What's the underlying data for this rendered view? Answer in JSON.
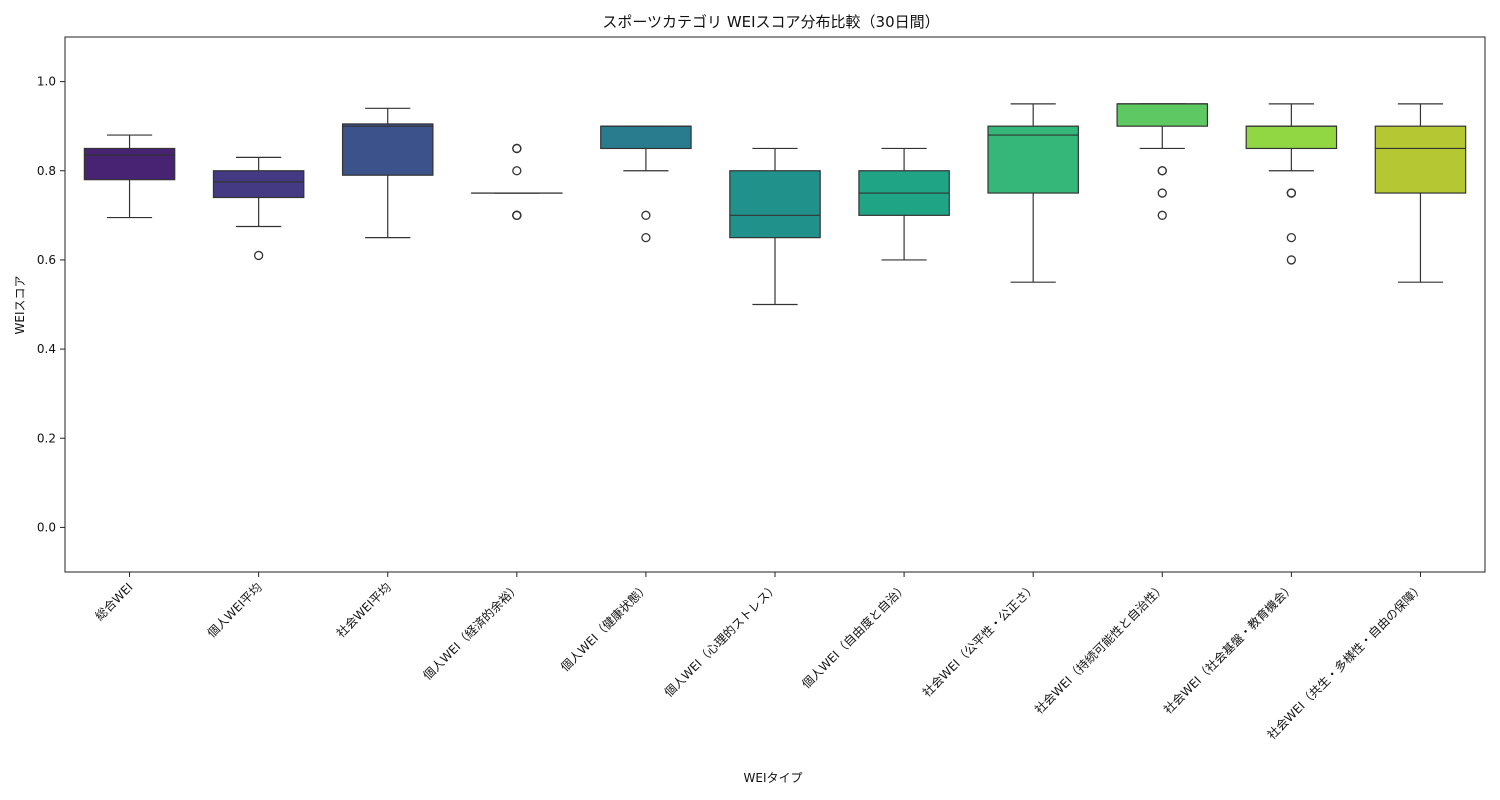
{
  "chart_data": {
    "type": "box",
    "title": "スポーツカテゴリ WEIスコア分布比較（30日間）",
    "xlabel": "WEIタイプ",
    "ylabel": "WEIスコア",
    "ylim": [
      -0.1,
      1.1
    ],
    "yticks": [
      "0.0",
      "0.2",
      "0.4",
      "0.6",
      "0.8",
      "1.0"
    ],
    "grid": false,
    "legend": "none",
    "categories": [
      "総合WEI",
      "個人WEI平均",
      "社会WEI平均",
      "個人WEI（経済的余裕）",
      "個人WEI（健康状態）",
      "個人WEI（心理的ストレス）",
      "個人WEI（自由度と自治）",
      "社会WEI（公平性・公正さ）",
      "社会WEI（持続可能性と自治性）",
      "社会WEI（社会基盤・教育機会）",
      "社会WEI（共生・多様性・自由の保障）"
    ],
    "boxes": [
      {
        "color": "#482374",
        "whisker_low": 0.695,
        "q1": 0.78,
        "median": 0.835,
        "q3": 0.85,
        "whisker_high": 0.88,
        "outliers": []
      },
      {
        "color": "#443983",
        "whisker_low": 0.675,
        "q1": 0.74,
        "median": 0.775,
        "q3": 0.8,
        "whisker_high": 0.83,
        "outliers": [
          0.61
        ]
      },
      {
        "color": "#3b528b",
        "whisker_low": 0.65,
        "q1": 0.79,
        "median": 0.9,
        "q3": 0.905,
        "whisker_high": 0.94,
        "outliers": []
      },
      {
        "color": "#31688e",
        "whisker_low": 0.75,
        "q1": 0.75,
        "median": 0.75,
        "q3": 0.75,
        "whisker_high": 0.75,
        "outliers": [
          0.85,
          0.85,
          0.8,
          0.7,
          0.7,
          0.7
        ]
      },
      {
        "color": "#287c8e",
        "whisker_low": 0.8,
        "q1": 0.85,
        "median": 0.9,
        "q3": 0.9,
        "whisker_high": 0.9,
        "outliers": [
          0.7,
          0.65
        ]
      },
      {
        "color": "#21918c",
        "whisker_low": 0.5,
        "q1": 0.65,
        "median": 0.7,
        "q3": 0.8,
        "whisker_high": 0.85,
        "outliers": []
      },
      {
        "color": "#20a486",
        "whisker_low": 0.6,
        "q1": 0.7,
        "median": 0.75,
        "q3": 0.8,
        "whisker_high": 0.85,
        "outliers": []
      },
      {
        "color": "#35b779",
        "whisker_low": 0.55,
        "q1": 0.75,
        "median": 0.88,
        "q3": 0.9,
        "whisker_high": 0.95,
        "outliers": []
      },
      {
        "color": "#5ec962",
        "whisker_low": 0.85,
        "q1": 0.9,
        "median": 0.95,
        "q3": 0.95,
        "whisker_high": 0.95,
        "outliers": [
          0.8,
          0.8,
          0.75,
          0.7
        ]
      },
      {
        "color": "#90d743",
        "whisker_low": 0.8,
        "q1": 0.85,
        "median": 0.9,
        "q3": 0.9,
        "whisker_high": 0.95,
        "outliers": [
          0.75,
          0.75,
          0.65,
          0.6
        ]
      },
      {
        "color": "#b5c833",
        "whisker_low": 0.55,
        "q1": 0.75,
        "median": 0.85,
        "q3": 0.9,
        "whisker_high": 0.95,
        "outliers": []
      }
    ]
  }
}
